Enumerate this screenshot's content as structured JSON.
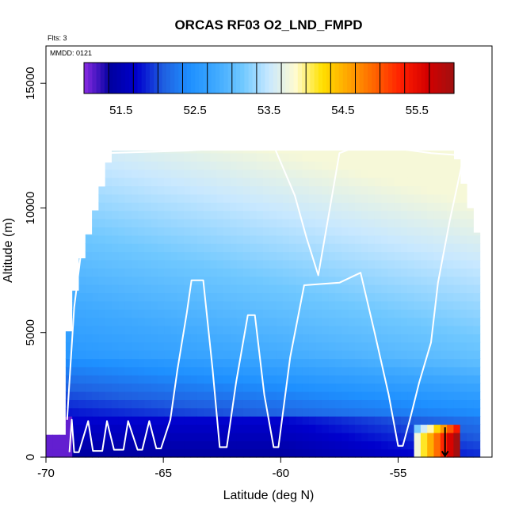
{
  "chart_data": {
    "type": "heatmap",
    "title": "ORCAS RF03 O2_LND_FMPD",
    "xlabel": "Latitude (deg N)",
    "ylabel": "Altitude (m)",
    "xlim": [
      -70,
      -51
    ],
    "ylim": [
      0,
      16500
    ],
    "xticks": [
      -70,
      -65,
      -60,
      -55
    ],
    "yticks": [
      0,
      5000,
      10000,
      15000
    ],
    "annotations": {
      "flights": "Flts: 3",
      "mmdd": "MMDD: 0121"
    },
    "colorbar": {
      "ticks": [
        "51.5",
        "52.5",
        "53.5",
        "54.5",
        "55.5"
      ],
      "tick_values": [
        51.5,
        52.5,
        53.5,
        54.5,
        55.5
      ],
      "range": [
        51.0,
        56.0
      ],
      "colors": [
        "#8a2be2",
        "#0000a0",
        "#0000cd",
        "#1f5fe0",
        "#1e90ff",
        "#3fa9ff",
        "#70c8ff",
        "#c8e8ff",
        "#fffbd0",
        "#ffe100",
        "#ffa500",
        "#ff6400",
        "#ff1e00",
        "#d40000",
        "#a01010"
      ]
    },
    "field": {
      "description_values": "O2_LND_FMPD on latitude-altitude grid",
      "surface_min_lat": -69.3,
      "notes": "low values near surface south of -65; higher values 53-53.8 aloft; high 55-56 near -53 at surface"
    },
    "flight_track": {
      "points": [
        [
          -69.0,
          200
        ],
        [
          -68.9,
          1500
        ],
        [
          -68.8,
          200
        ],
        [
          -68.6,
          200
        ],
        [
          -68.2,
          1450
        ],
        [
          -68.0,
          250
        ],
        [
          -67.6,
          250
        ],
        [
          -67.4,
          1450
        ],
        [
          -67.1,
          300
        ],
        [
          -66.7,
          300
        ],
        [
          -66.5,
          1450
        ],
        [
          -66.1,
          300
        ],
        [
          -65.9,
          300
        ],
        [
          -65.6,
          1450
        ],
        [
          -65.3,
          350
        ],
        [
          -65.1,
          350
        ],
        [
          -64.7,
          1500
        ],
        [
          -64.4,
          3500
        ],
        [
          -64.0,
          5800
        ],
        [
          -63.8,
          7100
        ],
        [
          -63.3,
          7100
        ],
        [
          -62.9,
          3500
        ],
        [
          -62.6,
          400
        ],
        [
          -62.3,
          400
        ],
        [
          -61.9,
          3000
        ],
        [
          -61.4,
          5700
        ],
        [
          -61.1,
          5700
        ],
        [
          -60.7,
          2500
        ],
        [
          -60.3,
          400
        ],
        [
          -60.1,
          400
        ],
        [
          -59.6,
          4000
        ],
        [
          -59.0,
          6900
        ],
        [
          -57.5,
          7000
        ],
        [
          -56.6,
          7400
        ],
        [
          -56.0,
          5000
        ],
        [
          -55.4,
          2500
        ],
        [
          -55.0,
          450
        ],
        [
          -54.8,
          450
        ],
        [
          -54.5,
          1500
        ],
        [
          -54.1,
          3000
        ],
        [
          -53.6,
          4600
        ],
        [
          -53.3,
          7000
        ],
        [
          -52.8,
          9500
        ],
        [
          -52.2,
          12100
        ],
        [
          -53.6,
          12200
        ],
        [
          -55.2,
          12400
        ],
        [
          -56.4,
          12600
        ],
        [
          -57.5,
          12200
        ],
        [
          -58.4,
          7300
        ],
        [
          -58.9,
          8800
        ],
        [
          -59.4,
          10500
        ],
        [
          -60.3,
          12500
        ],
        [
          -64.0,
          12300
        ],
        [
          -67.4,
          12200
        ],
        [
          -68.4,
          9000
        ],
        [
          -68.8,
          6000
        ],
        [
          -69.0,
          3000
        ],
        [
          -69.1,
          1500
        ]
      ]
    }
  }
}
